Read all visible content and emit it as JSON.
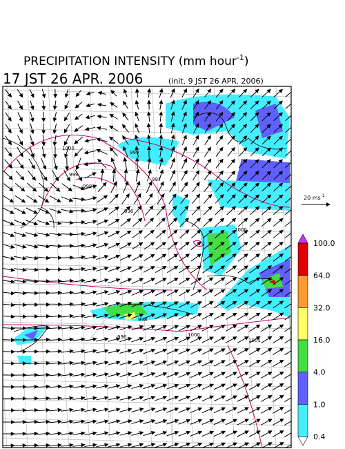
{
  "header": {
    "title": "PRECIPITATION INTENSITY (mm hour",
    "title_superscript": "-1",
    "title_end": ")",
    "valid_time": "17 JST 26 APR. 2006",
    "init_time": "(init. 9 JST 26 APR. 2006)"
  },
  "wind_scale": {
    "label": "20 ms",
    "superscript": "-1"
  },
  "colorbar": {
    "labels": [
      "100.0",
      "64.0",
      "32.0",
      "16.0",
      "4.0",
      "1.0",
      "0.4"
    ],
    "colors": [
      "#e00000",
      "#ff9933",
      "#ffff66",
      "#44dd44",
      "#6060ff",
      "#44eeff"
    ],
    "over_color": "#cc33ff",
    "under_color": "#ffffff"
  },
  "contour_labels": [
    "1000",
    "999",
    "998",
    "997",
    "996",
    "999",
    "1000",
    "1000",
    "1001",
    "998",
    "996"
  ]
}
